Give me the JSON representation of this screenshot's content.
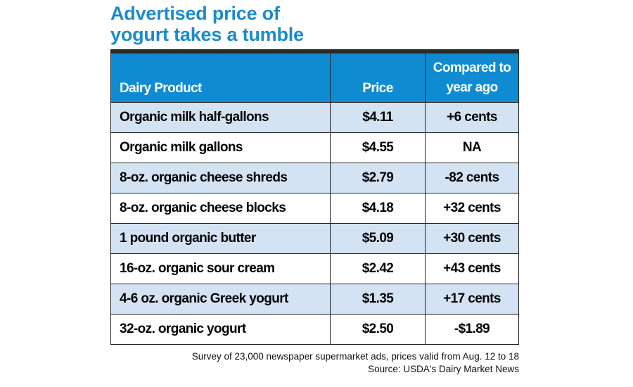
{
  "title_line1": "Advertised price of",
  "title_line2": "yogurt takes a tumble",
  "chart_data": {
    "type": "table",
    "title": "Advertised price of yogurt takes a tumble",
    "columns": [
      "Dairy Product",
      "Price",
      "Compared to year ago"
    ],
    "rows": [
      [
        "Organic milk half-gallons",
        "$4.11",
        "+6 cents"
      ],
      [
        "Organic milk gallons",
        "$4.55",
        "NA"
      ],
      [
        "8-oz. organic cheese shreds",
        "$2.79",
        "-82 cents"
      ],
      [
        "8-oz. organic cheese blocks",
        "$4.18",
        "+32 cents"
      ],
      [
        "1 pound organic butter",
        "$5.09",
        "+30 cents"
      ],
      [
        "16-oz. organic sour cream",
        "$2.42",
        "+43 cents"
      ],
      [
        "4-6 oz. organic Greek yogurt",
        "$1.35",
        "+17 cents"
      ],
      [
        "32-oz. organic yogurt",
        "$2.50",
        "-$1.89"
      ]
    ]
  },
  "footer": {
    "note": "Survey of 23,000 newspaper supermarket ads, prices valid from Aug. 12 to 18",
    "source": "Source: USDA's Dairy Market News"
  },
  "colors": {
    "title": "#1b8ccc",
    "header": "#0f8bd2",
    "stripe": "#d3e3f4"
  }
}
